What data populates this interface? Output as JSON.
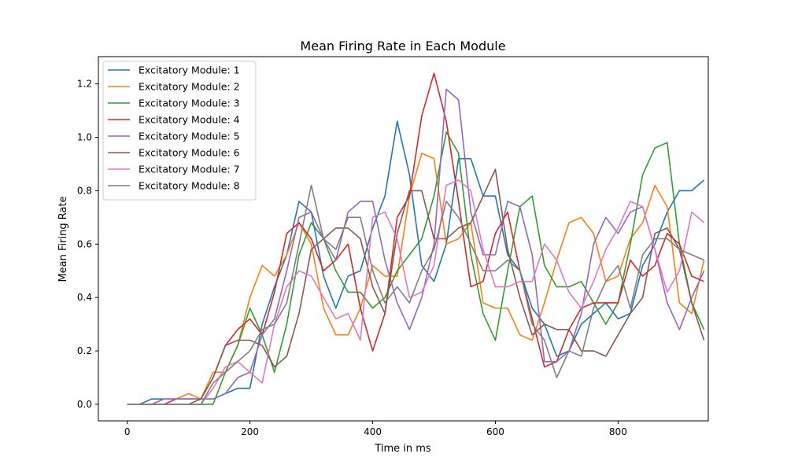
{
  "chart_data": {
    "type": "line",
    "title": "Mean Firing Rate in Each Module",
    "xlabel": "Time in ms",
    "ylabel": "Mean Firing Rate",
    "xlim": [
      -47,
      947
    ],
    "ylim": [
      -0.062,
      1.302
    ],
    "xticks": [
      0,
      200,
      400,
      600,
      800
    ],
    "xtick_labels": [
      "0",
      "200",
      "400",
      "600",
      "800"
    ],
    "yticks": [
      0.0,
      0.2,
      0.4,
      0.6,
      0.8,
      1.0,
      1.2
    ],
    "ytick_labels": [
      "0.0",
      "0.2",
      "0.4",
      "0.6",
      "0.8",
      "1.0",
      "1.2"
    ],
    "grid": false,
    "legend_position": "upper-left",
    "x": [
      0,
      20,
      40,
      60,
      80,
      100,
      120,
      140,
      160,
      180,
      200,
      220,
      240,
      260,
      280,
      300,
      320,
      340,
      360,
      380,
      400,
      420,
      440,
      460,
      480,
      500,
      520,
      540,
      560,
      580,
      600,
      620,
      640,
      660,
      680,
      700,
      720,
      740,
      760,
      780,
      800,
      820,
      840,
      860,
      880,
      900,
      920,
      940
    ],
    "series": [
      {
        "name": "Excitatory Module: 1",
        "color": "#1f77b4",
        "values": [
          0,
          0,
          0.02,
          0.02,
          0.02,
          0.02,
          0.02,
          0.02,
          0.04,
          0.06,
          0.06,
          0.3,
          0.44,
          0.56,
          0.76,
          0.72,
          0.48,
          0.36,
          0.48,
          0.5,
          0.66,
          0.78,
          1.06,
          0.86,
          0.52,
          0.46,
          0.6,
          0.92,
          0.92,
          0.78,
          0.78,
          0.56,
          0.5,
          0.36,
          0.3,
          0.18,
          0.2,
          0.3,
          0.34,
          0.38,
          0.32,
          0.34,
          0.52,
          0.6,
          0.72,
          0.8,
          0.8,
          0.84
        ]
      },
      {
        "name": "Excitatory Module: 2",
        "color": "#ff7f0e",
        "values": [
          0,
          0,
          0,
          0.02,
          0.02,
          0.04,
          0.02,
          0.12,
          0.12,
          0.22,
          0.4,
          0.52,
          0.48,
          0.56,
          0.68,
          0.6,
          0.36,
          0.26,
          0.26,
          0.36,
          0.52,
          0.48,
          0.48,
          0.78,
          0.94,
          0.92,
          0.6,
          0.62,
          0.68,
          0.38,
          0.36,
          0.36,
          0.26,
          0.24,
          0.38,
          0.54,
          0.68,
          0.7,
          0.64,
          0.46,
          0.48,
          0.62,
          0.68,
          0.82,
          0.74,
          0.38,
          0.34,
          0.54
        ]
      },
      {
        "name": "Excitatory Module: 3",
        "color": "#2ca02c",
        "values": [
          0,
          0,
          0,
          0,
          0,
          0,
          0,
          0,
          0.12,
          0.22,
          0.36,
          0.26,
          0.12,
          0.3,
          0.56,
          0.68,
          0.62,
          0.5,
          0.42,
          0.42,
          0.36,
          0.4,
          0.5,
          0.56,
          0.62,
          0.78,
          1.02,
          0.94,
          0.56,
          0.34,
          0.24,
          0.5,
          0.74,
          0.78,
          0.52,
          0.44,
          0.44,
          0.46,
          0.38,
          0.3,
          0.38,
          0.6,
          0.86,
          0.96,
          0.98,
          0.6,
          0.38,
          0.28
        ]
      },
      {
        "name": "Excitatory Module: 4",
        "color": "#d62728",
        "values": [
          0,
          0,
          0,
          0,
          0.02,
          0.02,
          0.02,
          0.1,
          0.22,
          0.28,
          0.32,
          0.26,
          0.42,
          0.64,
          0.68,
          0.62,
          0.5,
          0.54,
          0.6,
          0.36,
          0.2,
          0.34,
          0.7,
          0.78,
          1.08,
          1.24,
          1.06,
          0.76,
          0.44,
          0.46,
          0.64,
          0.72,
          0.5,
          0.32,
          0.14,
          0.16,
          0.28,
          0.36,
          0.38,
          0.38,
          0.38,
          0.54,
          0.48,
          0.52,
          0.64,
          0.6,
          0.48,
          0.46
        ]
      },
      {
        "name": "Excitatory Module: 5",
        "color": "#9467bd",
        "values": [
          0,
          0,
          0,
          0.02,
          0.02,
          0.02,
          0.02,
          0.02,
          0.04,
          0.1,
          0.12,
          0.26,
          0.32,
          0.5,
          0.7,
          0.72,
          0.62,
          0.54,
          0.72,
          0.76,
          0.76,
          0.54,
          0.38,
          0.28,
          0.4,
          0.6,
          1.18,
          1.14,
          0.72,
          0.56,
          0.56,
          0.76,
          0.74,
          0.56,
          0.16,
          0.16,
          0.2,
          0.34,
          0.6,
          0.7,
          0.64,
          0.72,
          0.74,
          0.58,
          0.38,
          0.28,
          0.4,
          0.5
        ]
      },
      {
        "name": "Excitatory Module: 6",
        "color": "#8c564b",
        "values": [
          0,
          0,
          0,
          0,
          0,
          0,
          0.02,
          0.1,
          0.22,
          0.24,
          0.24,
          0.22,
          0.14,
          0.18,
          0.34,
          0.58,
          0.62,
          0.66,
          0.66,
          0.62,
          0.44,
          0.34,
          0.64,
          0.8,
          0.8,
          0.62,
          0.62,
          0.66,
          0.68,
          0.78,
          0.88,
          0.58,
          0.4,
          0.26,
          0.3,
          0.28,
          0.28,
          0.2,
          0.2,
          0.18,
          0.26,
          0.34,
          0.4,
          0.64,
          0.66,
          0.58,
          0.38,
          0.24
        ]
      },
      {
        "name": "Excitatory Module: 7",
        "color": "#e377c2",
        "values": [
          0,
          0,
          0,
          0,
          0,
          0,
          0,
          0.06,
          0.14,
          0.16,
          0.12,
          0.08,
          0.3,
          0.44,
          0.5,
          0.48,
          0.4,
          0.32,
          0.34,
          0.24,
          0.7,
          0.72,
          0.62,
          0.4,
          0.42,
          0.52,
          0.82,
          0.84,
          0.8,
          0.58,
          0.44,
          0.44,
          0.46,
          0.46,
          0.6,
          0.54,
          0.42,
          0.36,
          0.46,
          0.58,
          0.66,
          0.76,
          0.74,
          0.58,
          0.42,
          0.5,
          0.72,
          0.68
        ]
      },
      {
        "name": "Excitatory Module: 8",
        "color": "#7f7f7f",
        "values": [
          0,
          0,
          0,
          0,
          0,
          0,
          0,
          0.08,
          0.12,
          0.16,
          0.2,
          0.28,
          0.3,
          0.38,
          0.6,
          0.82,
          0.62,
          0.58,
          0.7,
          0.7,
          0.5,
          0.38,
          0.44,
          0.38,
          0.5,
          0.58,
          0.76,
          0.7,
          0.6,
          0.5,
          0.5,
          0.54,
          0.5,
          0.3,
          0.24,
          0.1,
          0.2,
          0.18,
          0.36,
          0.46,
          0.52,
          0.36,
          0.56,
          0.62,
          0.62,
          0.58,
          0.56,
          0.54
        ]
      }
    ]
  }
}
